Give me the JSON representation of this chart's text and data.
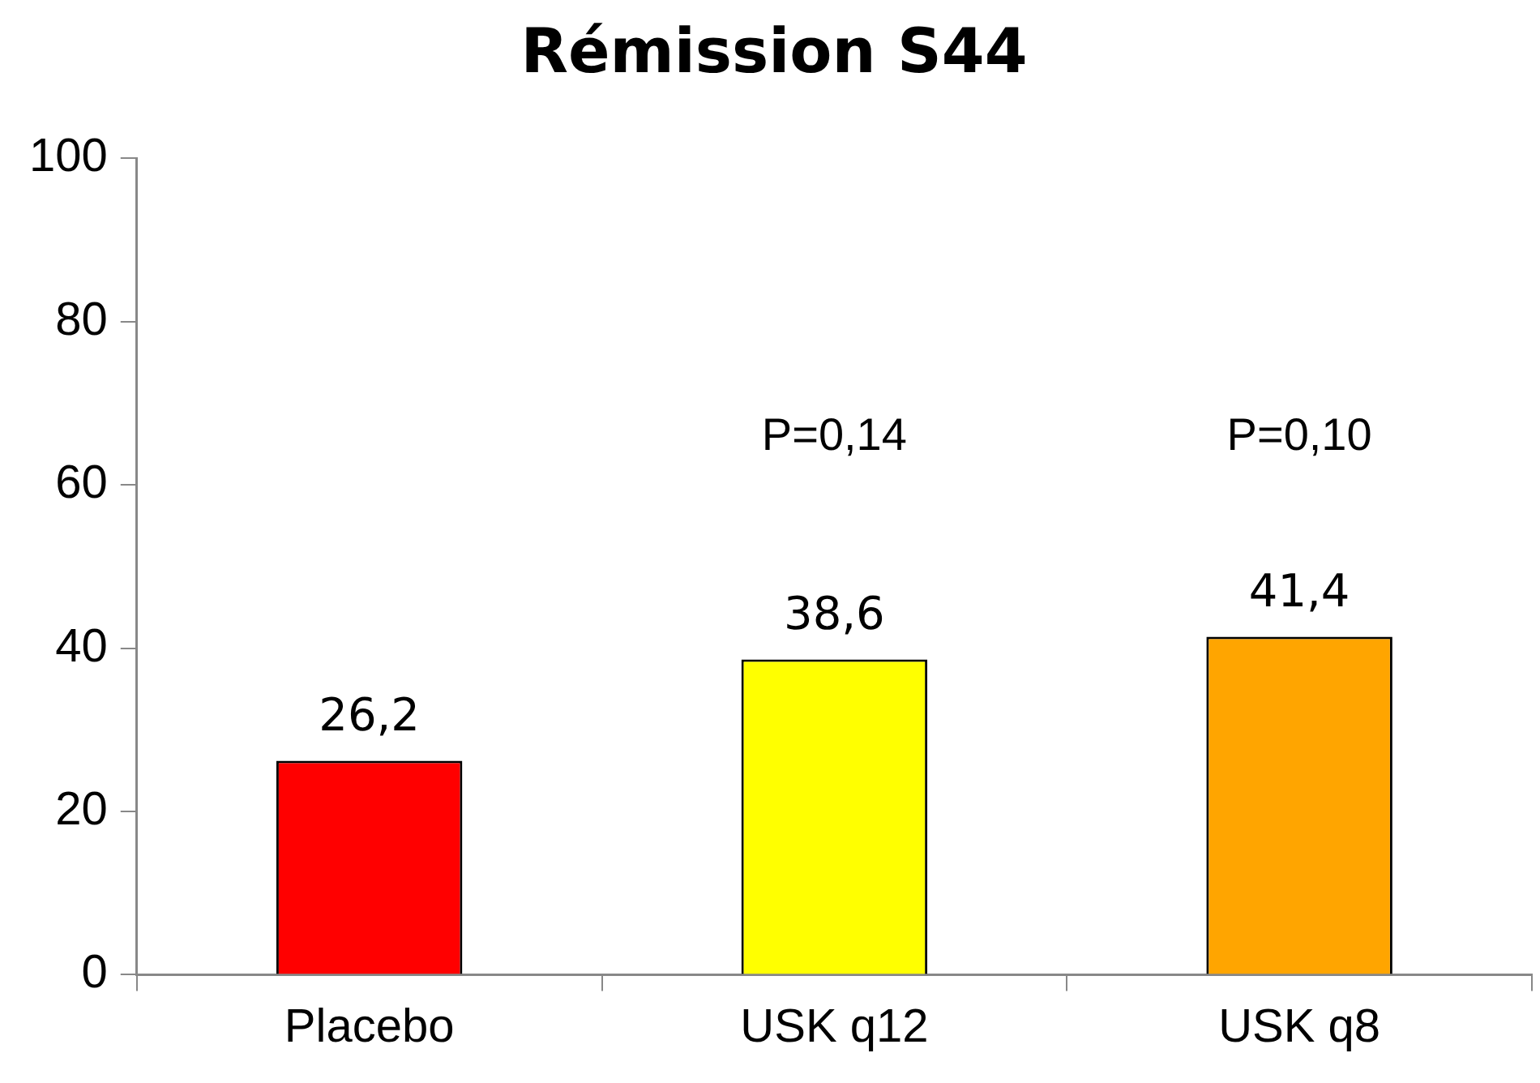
{
  "chart_data": {
    "type": "bar",
    "title": "Rémission S44",
    "categories": [
      "Placebo",
      "USK q12",
      "USK q8"
    ],
    "values": [
      26.2,
      38.6,
      41.4
    ],
    "colors": [
      "#ff0000",
      "#ffff00",
      "#ffa500"
    ],
    "value_labels": [
      "26,2",
      "38,6",
      "41,4"
    ],
    "ylim": [
      0,
      100
    ],
    "yticks": [
      0,
      20,
      40,
      60,
      80,
      100
    ],
    "grid": false,
    "legend": false,
    "annotations": [
      "P=0,14",
      "P=0,10"
    ]
  }
}
